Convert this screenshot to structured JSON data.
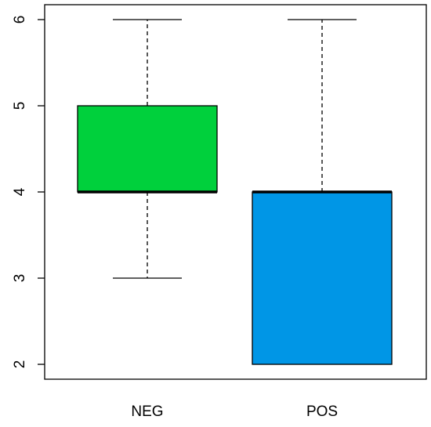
{
  "chart_data": {
    "type": "boxplot",
    "title": "",
    "xlabel": "",
    "ylabel": "",
    "ylim": [
      2,
      6
    ],
    "yticks": [
      2,
      3,
      4,
      5,
      6
    ],
    "categories": [
      "NEG",
      "POS"
    ],
    "boxes": [
      {
        "category": "NEG",
        "min": 3,
        "q1": 4,
        "median": 4,
        "q3": 5,
        "max": 6,
        "color": "#00d03c"
      },
      {
        "category": "POS",
        "min": 2,
        "q1": 2,
        "median": 4,
        "q3": 4,
        "max": 6,
        "color": "#0096e6"
      }
    ],
    "grid": false,
    "legend": "none"
  }
}
